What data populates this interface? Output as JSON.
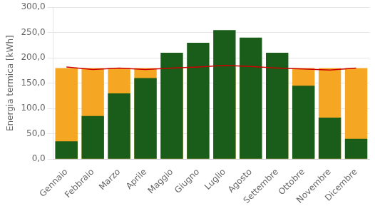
{
  "chart_data": {
    "type": "bar",
    "categories": [
      "Gennaio",
      "Febbraio",
      "Marzo",
      "Aprile",
      "Maggio",
      "Giugno",
      "Luglio",
      "Agosto",
      "Settembre",
      "Ottobre",
      "Novembre",
      "Dicembre"
    ],
    "series": [
      {
        "type": "bar",
        "color": "#f5a623",
        "values": [
          180,
          180,
          180,
          180,
          180,
          180,
          180,
          180,
          180,
          180,
          180,
          180
        ]
      },
      {
        "type": "bar",
        "color": "#1a5c1a",
        "values": [
          35,
          85,
          130,
          160,
          210,
          230,
          255,
          240,
          210,
          145,
          82,
          40
        ]
      },
      {
        "type": "line",
        "color": "#cc0000",
        "values": [
          182,
          177,
          180,
          177,
          180,
          182,
          185,
          183,
          180,
          178,
          176,
          180
        ]
      }
    ],
    "ylabel": "Energia termica [kWh]",
    "ylim": [
      0,
      300
    ],
    "yticks": [
      {
        "value": 0,
        "label": "0,0"
      },
      {
        "value": 50,
        "label": "50,0"
      },
      {
        "value": 100,
        "label": "100,0"
      },
      {
        "value": 150,
        "label": "150,0"
      },
      {
        "value": 200,
        "label": "200,0"
      },
      {
        "value": 250,
        "label": "250,0"
      },
      {
        "value": 300,
        "label": "300,0"
      }
    ],
    "grid": true
  }
}
